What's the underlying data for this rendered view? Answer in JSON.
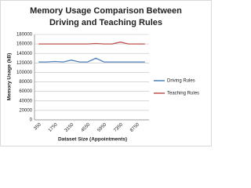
{
  "chart_data": {
    "type": "line",
    "title": [
      "Memory Usage Comparison Between",
      "Driving and Teaching Rules"
    ],
    "x_label": "Dataset Size (Appointments)",
    "y_label": "Memory Usage (kB)",
    "categories": [
      "350",
      null,
      "1750",
      null,
      "3150",
      null,
      "4550",
      null,
      "5950",
      null,
      "7350",
      null,
      "8750",
      null
    ],
    "series": [
      {
        "name": "Driving Rules",
        "color": "#4f81bd",
        "values": [
          122000,
          122000,
          123000,
          122000,
          126000,
          122000,
          122000,
          130000,
          122000,
          122000,
          122000,
          122000,
          122000,
          122000
        ]
      },
      {
        "name": "Teaching Rules",
        "color": "#c0504d",
        "values": [
          160000,
          160000,
          160000,
          160000,
          160000,
          160000,
          160000,
          161000,
          160000,
          160000,
          164000,
          160000,
          160000,
          160000
        ]
      }
    ],
    "ylim": [
      0,
      180000
    ],
    "yticks": [
      0,
      20000,
      40000,
      60000,
      80000,
      100000,
      120000,
      140000,
      160000,
      180000
    ],
    "grid": true,
    "legend": "right"
  }
}
